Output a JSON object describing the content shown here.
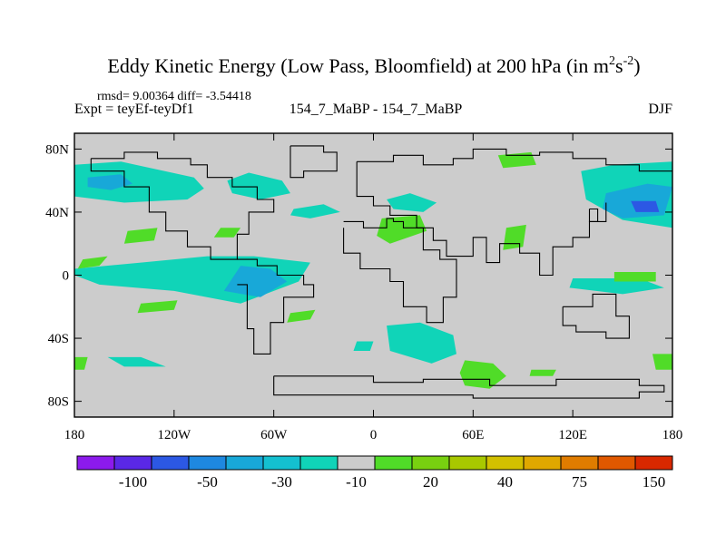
{
  "chart_data": {
    "type": "heatmap",
    "title_main": "Eddy Kinetic Energy (Low Pass, Bloomfield) at 200 hPa (in m",
    "title_sup1": "2",
    "title_mid": "s",
    "title_sup2": "-2",
    "title_close": ")",
    "stats": "rmsd= 9.00364 diff= -3.54418",
    "experiment": "Expt = teyEf-teyDf1",
    "case_label": "154_7_MaBP - 154_7_MaBP",
    "season": "DJF",
    "xlim": [
      -180,
      180
    ],
    "ylim": [
      -90,
      90
    ],
    "x_ticks": [
      {
        "value": -180,
        "label": "180"
      },
      {
        "value": -120,
        "label": "120W"
      },
      {
        "value": -60,
        "label": "60W"
      },
      {
        "value": 0,
        "label": "0"
      },
      {
        "value": 60,
        "label": "60E"
      },
      {
        "value": 120,
        "label": "120E"
      },
      {
        "value": 180,
        "label": "180"
      }
    ],
    "y_ticks": [
      {
        "value": 80,
        "label": "80N"
      },
      {
        "value": 40,
        "label": "40N"
      },
      {
        "value": 0,
        "label": "0"
      },
      {
        "value": -40,
        "label": "40S"
      },
      {
        "value": -80,
        "label": "80S"
      }
    ],
    "colorbar": {
      "colors": [
        "#8c1aec",
        "#5a28e6",
        "#2c58e4",
        "#1e88e0",
        "#18a8d8",
        "#14c0d0",
        "#10d4b8",
        "#cccccc",
        "#50dc28",
        "#78d010",
        "#a8c800",
        "#d2c000",
        "#e0a800",
        "#e07c00",
        "#e05800",
        "#d82800"
      ],
      "labels": [
        {
          "bin": 2,
          "text": "-100"
        },
        {
          "bin": 4,
          "text": "-50"
        },
        {
          "bin": 6,
          "text": "-30"
        },
        {
          "bin": 8,
          "text": "-10"
        },
        {
          "bin": 10,
          "text": "20"
        },
        {
          "bin": 12,
          "text": "40"
        },
        {
          "bin": 14,
          "text": "75"
        },
        {
          "bin": 16,
          "text": "150"
        }
      ]
    },
    "fields": [
      {
        "name": "north-pacific-east",
        "level": -20,
        "lon": [
          -180,
          -152,
          -108,
          -102,
          -112,
          -150,
          -180
        ],
        "lat": [
          70,
          72,
          62,
          55,
          48,
          46,
          50
        ]
      },
      {
        "name": "north-pacific-east-core",
        "level": -40,
        "lon": [
          -172,
          -152,
          -145,
          -158,
          -172
        ],
        "lat": [
          62,
          64,
          58,
          54,
          56
        ]
      },
      {
        "name": "north-atlantic-west",
        "level": -20,
        "lon": [
          -88,
          -75,
          -55,
          -50,
          -68,
          -85
        ],
        "lat": [
          60,
          65,
          60,
          52,
          48,
          52
        ]
      },
      {
        "name": "north-atlantic-mid",
        "level": -20,
        "lon": [
          -48,
          -30,
          -20,
          -38,
          -50
        ],
        "lat": [
          42,
          45,
          40,
          36,
          38
        ]
      },
      {
        "name": "north-pacific-west",
        "level": -20,
        "lon": [
          125,
          145,
          180,
          180,
          150,
          128
        ],
        "lat": [
          66,
          70,
          72,
          30,
          35,
          48
        ]
      },
      {
        "name": "north-pacific-west-core",
        "level": -40,
        "lon": [
          140,
          165,
          180,
          175,
          150,
          138
        ],
        "lat": [
          52,
          58,
          56,
          38,
          36,
          42
        ]
      },
      {
        "name": "north-pacific-west-center",
        "level": -80,
        "lon": [
          155,
          170,
          172,
          158
        ],
        "lat": [
          47,
          47,
          40,
          40
        ]
      },
      {
        "name": "tropical-atlantic",
        "level": -20,
        "lon": [
          -180,
          -140,
          -100,
          -72,
          -38,
          -45,
          -80,
          -120,
          -165,
          -180
        ],
        "lat": [
          4,
          8,
          12,
          12,
          8,
          -4,
          -18,
          -10,
          -6,
          0
        ]
      },
      {
        "name": "tropical-atlantic-core",
        "level": -40,
        "lon": [
          -80,
          -62,
          -52,
          -68,
          -90
        ],
        "lat": [
          6,
          4,
          -4,
          -14,
          -10
        ]
      },
      {
        "name": "eurasia-north",
        "level": -20,
        "lon": [
          8,
          22,
          38,
          30,
          12
        ],
        "lat": [
          48,
          52,
          46,
          40,
          42
        ]
      },
      {
        "name": "south-atlantic-east",
        "level": -20,
        "lon": [
          8,
          28,
          48,
          50,
          35,
          10
        ],
        "lat": [
          -32,
          -30,
          -38,
          -50,
          -56,
          -48
        ]
      },
      {
        "name": "south-indian-small",
        "level": -20,
        "lon": [
          -10,
          0,
          -2,
          -12
        ],
        "lat": [
          -42,
          -42,
          -48,
          -48
        ]
      },
      {
        "name": "south-pacific-east",
        "level": -20,
        "lon": [
          120,
          160,
          175,
          150,
          118
        ],
        "lat": [
          -2,
          -2,
          -8,
          -12,
          -8
        ]
      },
      {
        "name": "south-pacific-mid",
        "level": -20,
        "lon": [
          -160,
          -140,
          -125,
          -150
        ],
        "lat": [
          -52,
          -52,
          -58,
          -58
        ]
      },
      {
        "name": "green-greenland",
        "level": 20,
        "lon": [
          75,
          95,
          98,
          78
        ],
        "lat": [
          76,
          78,
          70,
          68
        ]
      },
      {
        "name": "green-europe",
        "level": 20,
        "lon": [
          5,
          28,
          32,
          10,
          2
        ],
        "lat": [
          36,
          38,
          28,
          20,
          25
        ]
      },
      {
        "name": "green-asia",
        "level": 20,
        "lon": [
          80,
          92,
          90,
          78
        ],
        "lat": [
          30,
          32,
          18,
          16
        ]
      },
      {
        "name": "green-north-pacific",
        "level": 20,
        "lon": [
          -92,
          -80,
          -84,
          -96
        ],
        "lat": [
          30,
          30,
          24,
          24
        ]
      },
      {
        "name": "green-pacific-west",
        "level": 20,
        "lon": [
          -148,
          -130,
          -132,
          -150
        ],
        "lat": [
          28,
          30,
          22,
          20
        ]
      },
      {
        "name": "green-atlantic-south",
        "level": 20,
        "lon": [
          -140,
          -118,
          -120,
          -142
        ],
        "lat": [
          -18,
          -16,
          -22,
          -24
        ]
      },
      {
        "name": "green-south-africa",
        "level": 20,
        "lon": [
          -50,
          -35,
          -38,
          -52
        ],
        "lat": [
          -24,
          -22,
          -28,
          -30
        ]
      },
      {
        "name": "green-south-pacific",
        "level": 20,
        "lon": [
          55,
          72,
          80,
          70,
          55,
          52
        ],
        "lat": [
          -54,
          -56,
          -64,
          -72,
          -70,
          -62
        ]
      },
      {
        "name": "green-indian-east",
        "level": 20,
        "lon": [
          95,
          110,
          108,
          94
        ],
        "lat": [
          -60,
          -60,
          -64,
          -64
        ]
      },
      {
        "name": "green-pacific-west-tropics",
        "level": 20,
        "lon": [
          -175,
          -160,
          -165,
          -178
        ],
        "lat": [
          10,
          12,
          6,
          4
        ]
      },
      {
        "name": "green-far-west-south",
        "level": 20,
        "lon": [
          -180,
          -172,
          -174,
          -180
        ],
        "lat": [
          -52,
          -52,
          -60,
          -60
        ]
      },
      {
        "name": "green-far-east-south",
        "level": 20,
        "lon": [
          168,
          180,
          180,
          170
        ],
        "lat": [
          -50,
          -50,
          -60,
          -60
        ]
      },
      {
        "name": "green-east-mid",
        "level": 20,
        "lon": [
          145,
          170,
          170,
          145
        ],
        "lat": [
          2,
          2,
          -4,
          -4
        ]
      }
    ],
    "coastline": [
      {
        "lon": [
          -170,
          -150,
          -150,
          -130,
          -130,
          -110,
          -110,
          -100,
          -100,
          -85,
          -85,
          -70,
          -70,
          -60,
          -60,
          -75,
          -75,
          -82,
          -82,
          -98,
          -98,
          -112,
          -112,
          -125,
          -125,
          -135,
          -135,
          -150,
          -150,
          -170,
          -170
        ],
        "lat": [
          74,
          74,
          78,
          78,
          74,
          74,
          70,
          70,
          62,
          62,
          56,
          56,
          48,
          48,
          40,
          40,
          26,
          26,
          10,
          10,
          18,
          18,
          28,
          28,
          40,
          40,
          56,
          56,
          66,
          66,
          74
        ]
      },
      {
        "lon": [
          -82,
          -70,
          -70,
          -58,
          -58,
          -42,
          -42,
          -36,
          -36,
          -54,
          -54,
          -62,
          -62,
          -72,
          -72,
          -76,
          -76,
          -82
        ],
        "lat": [
          10,
          10,
          6,
          6,
          0,
          0,
          -6,
          -6,
          -14,
          -14,
          -30,
          -30,
          -50,
          -50,
          -34,
          -34,
          -6,
          -6
        ]
      },
      {
        "lon": [
          -50,
          -30,
          -30,
          -22,
          -22,
          -42,
          -42,
          -50,
          -50
        ],
        "lat": [
          82,
          82,
          78,
          78,
          66,
          66,
          62,
          62,
          82
        ]
      },
      {
        "lon": [
          -10,
          12,
          12,
          30,
          30,
          48,
          48,
          60,
          60,
          80,
          80,
          100,
          100,
          120,
          120,
          140,
          140,
          160,
          160,
          180
        ],
        "lat": [
          72,
          72,
          76,
          76,
          70,
          70,
          74,
          74,
          80,
          80,
          76,
          76,
          78,
          78,
          74,
          74,
          70,
          70,
          66,
          66
        ]
      },
      {
        "lon": [
          -10,
          -10,
          0,
          0,
          10,
          10,
          26,
          26,
          36,
          36,
          44,
          44,
          60,
          60,
          68,
          68,
          76,
          76,
          88,
          88,
          100,
          100,
          108,
          108,
          120,
          120,
          130,
          130,
          140,
          140
        ],
        "lat": [
          72,
          50,
          50,
          44,
          44,
          38,
          38,
          30,
          30,
          22,
          22,
          12,
          12,
          24,
          24,
          8,
          8,
          20,
          20,
          14,
          14,
          0,
          0,
          18,
          18,
          24,
          24,
          34,
          34,
          46
        ]
      },
      {
        "lon": [
          -18,
          -18,
          -8,
          -8,
          10,
          10,
          18,
          18,
          32,
          32,
          42,
          42,
          50,
          50,
          40,
          40,
          30,
          30,
          18,
          18,
          12,
          12,
          8,
          8,
          -6,
          -6,
          -18
        ],
        "lat": [
          30,
          14,
          14,
          4,
          4,
          -4,
          -4,
          -20,
          -20,
          -30,
          -30,
          -14,
          -14,
          10,
          10,
          16,
          16,
          30,
          30,
          34,
          34,
          36,
          36,
          30,
          30,
          34,
          34
        ]
      },
      {
        "lon": [
          114,
          114,
          122,
          122,
          140,
          140,
          154,
          154,
          146,
          146,
          132,
          132,
          114
        ],
        "lat": [
          -20,
          -32,
          -32,
          -36,
          -36,
          -40,
          -40,
          -26,
          -26,
          -12,
          -12,
          -20,
          -20
        ]
      },
      {
        "lon": [
          -60,
          0,
          0,
          30,
          30,
          70,
          70,
          110,
          110,
          160,
          160,
          175,
          175,
          160,
          160,
          60,
          60,
          -60,
          -60
        ],
        "lat": [
          -64,
          -64,
          -68,
          -68,
          -66,
          -66,
          -70,
          -70,
          -66,
          -66,
          -70,
          -70,
          -74,
          -74,
          -78,
          -78,
          -76,
          -76,
          -64
        ]
      },
      {
        "lon": [
          130,
          135,
          135,
          130,
          130
        ],
        "lat": [
          42,
          42,
          34,
          34,
          42
        ]
      }
    ]
  }
}
